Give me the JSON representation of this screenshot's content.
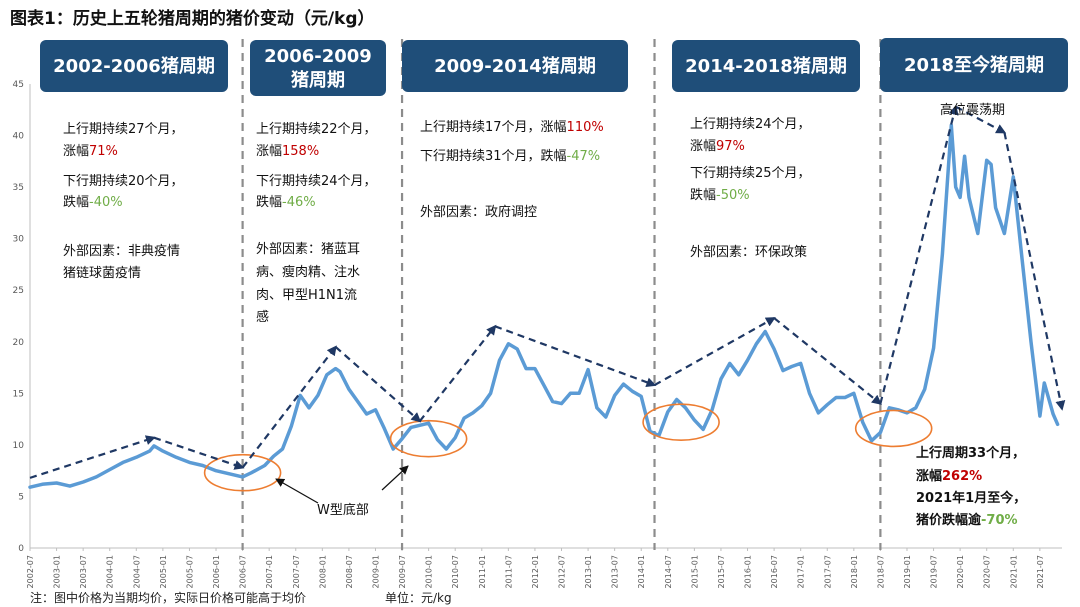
{
  "figure": {
    "title": "图表1：历史上五轮猪周期的猪价变动（元/kg）",
    "footnote": "注：图中价格为当期均价，实际日价格可能高于均价",
    "unit": "单位：元/kg",
    "line_color": "#5b9bd5",
    "trend_color": "#1f3864",
    "box_color": "#1f4e79",
    "rise_color": "#c00000",
    "fall_color": "#70ad47",
    "circle_color": "#ed7d31"
  },
  "cycles": [
    {
      "label": "2002-2006猪周期",
      "lines": [
        [
          {
            "t": "上行期持续27个月，",
            "c": "n"
          }
        ],
        [
          {
            "t": "涨幅",
            "c": "n"
          },
          {
            "t": "71%",
            "c": "r"
          }
        ],
        [
          {
            "t": "下行期持续20个月，",
            "c": "n"
          }
        ],
        [
          {
            "t": "跌幅",
            "c": "n"
          },
          {
            "t": "-40%",
            "c": "g"
          }
        ],
        [
          {
            "t": "外部因素：非典疫情",
            "c": "n"
          }
        ],
        [
          {
            "t": "猪链球菌疫情",
            "c": "n"
          }
        ]
      ]
    },
    {
      "label": "2006-2009猪周期",
      "lines": [
        [
          {
            "t": "上行期持续22个月，",
            "c": "n"
          }
        ],
        [
          {
            "t": "涨幅",
            "c": "n"
          },
          {
            "t": "158%",
            "c": "r"
          }
        ],
        [
          {
            "t": "下行期持续24个月，",
            "c": "n"
          }
        ],
        [
          {
            "t": "跌幅",
            "c": "n"
          },
          {
            "t": "-46%",
            "c": "g"
          }
        ],
        [
          {
            "t": "外部因素：猪蓝耳",
            "c": "n"
          }
        ],
        [
          {
            "t": "病、瘦肉精、注水",
            "c": "n"
          }
        ],
        [
          {
            "t": "肉、甲型H1N1流",
            "c": "n"
          }
        ],
        [
          {
            "t": "感",
            "c": "n"
          }
        ]
      ]
    },
    {
      "label": "2009-2014猪周期",
      "lines": [
        [
          {
            "t": "上行期持续17个月，涨幅",
            "c": "n"
          },
          {
            "t": "110%",
            "c": "r"
          }
        ],
        [
          {
            "t": "下行期持续31个月，跌幅",
            "c": "n"
          },
          {
            "t": "-47%",
            "c": "g"
          }
        ],
        [
          {
            "t": "外部因素：政府调控",
            "c": "n"
          }
        ]
      ]
    },
    {
      "label": "2014-2018猪周期",
      "lines": [
        [
          {
            "t": "上行期持续24个月，",
            "c": "n"
          }
        ],
        [
          {
            "t": "涨幅",
            "c": "n"
          },
          {
            "t": "97%",
            "c": "r"
          }
        ],
        [
          {
            "t": "下行期持续25个月，",
            "c": "n"
          }
        ],
        [
          {
            "t": "跌幅",
            "c": "n"
          },
          {
            "t": "-50%",
            "c": "g"
          }
        ],
        [
          {
            "t": "外部因素：环保政策",
            "c": "n"
          }
        ]
      ]
    },
    {
      "label": "2018至今猪周期",
      "lines": [
        [
          {
            "t": "上行周期33个月，",
            "c": "n"
          }
        ],
        [
          {
            "t": "涨幅",
            "c": "n"
          },
          {
            "t": "262%",
            "c": "r"
          }
        ],
        [
          {
            "t": "2021年1月至今，",
            "c": "n"
          }
        ],
        [
          {
            "t": "猪价跌幅逾",
            "c": "n"
          },
          {
            "t": "-70%",
            "c": "g"
          }
        ]
      ]
    }
  ],
  "annotations": {
    "w_bottom": "W型底部",
    "high_volatility": "高位震荡期"
  },
  "chart_data": {
    "type": "line",
    "title": "图表1：历史上五轮猪周期的猪价变动（元/kg）",
    "xlabel": "",
    "ylabel": "",
    "ylim": [
      0,
      45
    ],
    "yticks": [
      0,
      5,
      10,
      15,
      20,
      25,
      30,
      35,
      40,
      45
    ],
    "x_range": [
      "2002-07",
      "2021-12"
    ],
    "xticks": [
      "2002-07",
      "2003-01",
      "2003-07",
      "2004-01",
      "2004-07",
      "2005-01",
      "2005-07",
      "2006-01",
      "2006-07",
      "2007-01",
      "2007-07",
      "2008-01",
      "2008-07",
      "2009-01",
      "2009-07",
      "2010-01",
      "2010-07",
      "2011-01",
      "2011-07",
      "2012-01",
      "2012-07",
      "2013-01",
      "2013-07",
      "2014-01",
      "2014-07",
      "2015-01",
      "2015-07",
      "2016-01",
      "2016-07",
      "2017-01",
      "2017-07",
      "2018-01",
      "2018-07",
      "2019-01",
      "2019-07",
      "2020-01",
      "2020-07",
      "2021-01",
      "2021-07"
    ],
    "grid": false,
    "series": [
      {
        "points": [
          [
            "2002-07",
            5.9
          ],
          [
            "2002-10",
            6.2
          ],
          [
            "2003-01",
            6.3
          ],
          [
            "2003-04",
            6.0
          ],
          [
            "2003-07",
            6.4
          ],
          [
            "2003-10",
            6.9
          ],
          [
            "2004-01",
            7.6
          ],
          [
            "2004-04",
            8.3
          ],
          [
            "2004-07",
            8.8
          ],
          [
            "2004-10",
            9.4
          ],
          [
            "2004-11",
            9.9
          ],
          [
            "2005-01",
            9.4
          ],
          [
            "2005-04",
            8.8
          ],
          [
            "2005-07",
            8.3
          ],
          [
            "2005-10",
            8.0
          ],
          [
            "2006-01",
            7.5
          ],
          [
            "2006-04",
            7.2
          ],
          [
            "2006-07",
            6.9
          ],
          [
            "2006-09",
            7.3
          ],
          [
            "2006-12",
            8.0
          ],
          [
            "2007-02",
            8.9
          ],
          [
            "2007-04",
            9.6
          ],
          [
            "2007-06",
            11.8
          ],
          [
            "2007-08",
            14.8
          ],
          [
            "2007-10",
            13.6
          ],
          [
            "2007-12",
            14.8
          ],
          [
            "2008-02",
            16.8
          ],
          [
            "2008-04",
            17.4
          ],
          [
            "2008-05",
            17.1
          ],
          [
            "2008-07",
            15.4
          ],
          [
            "2008-09",
            14.2
          ],
          [
            "2008-11",
            13.0
          ],
          [
            "2009-01",
            13.4
          ],
          [
            "2009-03",
            11.6
          ],
          [
            "2009-05",
            9.6
          ],
          [
            "2009-07",
            10.6
          ],
          [
            "2009-09",
            11.7
          ],
          [
            "2009-11",
            11.9
          ],
          [
            "2010-01",
            12.1
          ],
          [
            "2010-03",
            10.5
          ],
          [
            "2010-05",
            9.6
          ],
          [
            "2010-07",
            10.7
          ],
          [
            "2010-09",
            12.6
          ],
          [
            "2010-11",
            13.1
          ],
          [
            "2011-01",
            13.8
          ],
          [
            "2011-03",
            15.0
          ],
          [
            "2011-05",
            18.2
          ],
          [
            "2011-07",
            19.8
          ],
          [
            "2011-09",
            19.3
          ],
          [
            "2011-11",
            17.4
          ],
          [
            "2012-01",
            17.4
          ],
          [
            "2012-03",
            15.8
          ],
          [
            "2012-05",
            14.2
          ],
          [
            "2012-07",
            14.0
          ],
          [
            "2012-09",
            15.0
          ],
          [
            "2012-11",
            15.0
          ],
          [
            "2013-01",
            17.3
          ],
          [
            "2013-03",
            13.6
          ],
          [
            "2013-05",
            12.7
          ],
          [
            "2013-07",
            14.8
          ],
          [
            "2013-09",
            15.9
          ],
          [
            "2013-11",
            15.2
          ],
          [
            "2014-01",
            14.7
          ],
          [
            "2014-03",
            11.3
          ],
          [
            "2014-05",
            10.9
          ],
          [
            "2014-07",
            13.2
          ],
          [
            "2014-09",
            14.4
          ],
          [
            "2014-11",
            13.6
          ],
          [
            "2015-01",
            12.4
          ],
          [
            "2015-03",
            11.5
          ],
          [
            "2015-05",
            13.4
          ],
          [
            "2015-07",
            16.4
          ],
          [
            "2015-09",
            17.9
          ],
          [
            "2015-11",
            16.8
          ],
          [
            "2016-01",
            18.2
          ],
          [
            "2016-03",
            19.8
          ],
          [
            "2016-05",
            21.0
          ],
          [
            "2016-07",
            19.3
          ],
          [
            "2016-09",
            17.2
          ],
          [
            "2016-11",
            17.6
          ],
          [
            "2017-01",
            17.9
          ],
          [
            "2017-03",
            15.0
          ],
          [
            "2017-05",
            13.1
          ],
          [
            "2017-07",
            13.9
          ],
          [
            "2017-09",
            14.6
          ],
          [
            "2017-11",
            14.6
          ],
          [
            "2018-01",
            15.0
          ],
          [
            "2018-03",
            12.2
          ],
          [
            "2018-05",
            10.4
          ],
          [
            "2018-07",
            11.2
          ],
          [
            "2018-09",
            13.6
          ],
          [
            "2018-11",
            13.4
          ],
          [
            "2019-01",
            13.1
          ],
          [
            "2019-03",
            13.6
          ],
          [
            "2019-05",
            15.4
          ],
          [
            "2019-07",
            19.4
          ],
          [
            "2019-09",
            28.5
          ],
          [
            "2019-11",
            41.0
          ],
          [
            "2019-12",
            35.0
          ],
          [
            "2020-01",
            34.0
          ],
          [
            "2020-02",
            38.0
          ],
          [
            "2020-03",
            34.0
          ],
          [
            "2020-05",
            30.5
          ],
          [
            "2020-07",
            37.6
          ],
          [
            "2020-08",
            37.2
          ],
          [
            "2020-09",
            33.0
          ],
          [
            "2020-11",
            30.5
          ],
          [
            "2021-01",
            36.0
          ],
          [
            "2021-03",
            28.0
          ],
          [
            "2021-05",
            20.0
          ],
          [
            "2021-07",
            12.8
          ],
          [
            "2021-08",
            16.0
          ],
          [
            "2021-10",
            13.0
          ],
          [
            "2021-11",
            12.0
          ]
        ]
      }
    ],
    "trend_lines": [
      [
        [
          "2002-07",
          6.8
        ],
        [
          "2004-11",
          10.7
        ],
        [
          "2006-07",
          7.8
        ]
      ],
      [
        [
          "2006-07",
          7.8
        ],
        [
          "2008-04",
          19.5
        ],
        [
          "2009-11",
          12.3
        ]
      ],
      [
        [
          "2009-11",
          12.3
        ],
        [
          "2011-04",
          21.5
        ],
        [
          "2014-04",
          15.8
        ]
      ],
      [
        [
          "2014-04",
          15.8
        ],
        [
          "2016-07",
          22.3
        ],
        [
          "2018-07",
          14.0
        ]
      ],
      [
        [
          "2018-07",
          14.0
        ],
        [
          "2019-12",
          42.8
        ],
        [
          "2020-11",
          40.3
        ],
        [
          "2021-12",
          13.5
        ]
      ]
    ],
    "circles": [
      {
        "center": [
          "2006-07",
          7.3
        ]
      },
      {
        "center": [
          "2010-01",
          10.6
        ]
      },
      {
        "center": [
          "2014-10",
          12.2
        ]
      },
      {
        "center": [
          "2018-10",
          11.6
        ]
      }
    ],
    "dividers": [
      "2006-07",
      "2009-07",
      "2014-04",
      "2018-07"
    ]
  }
}
